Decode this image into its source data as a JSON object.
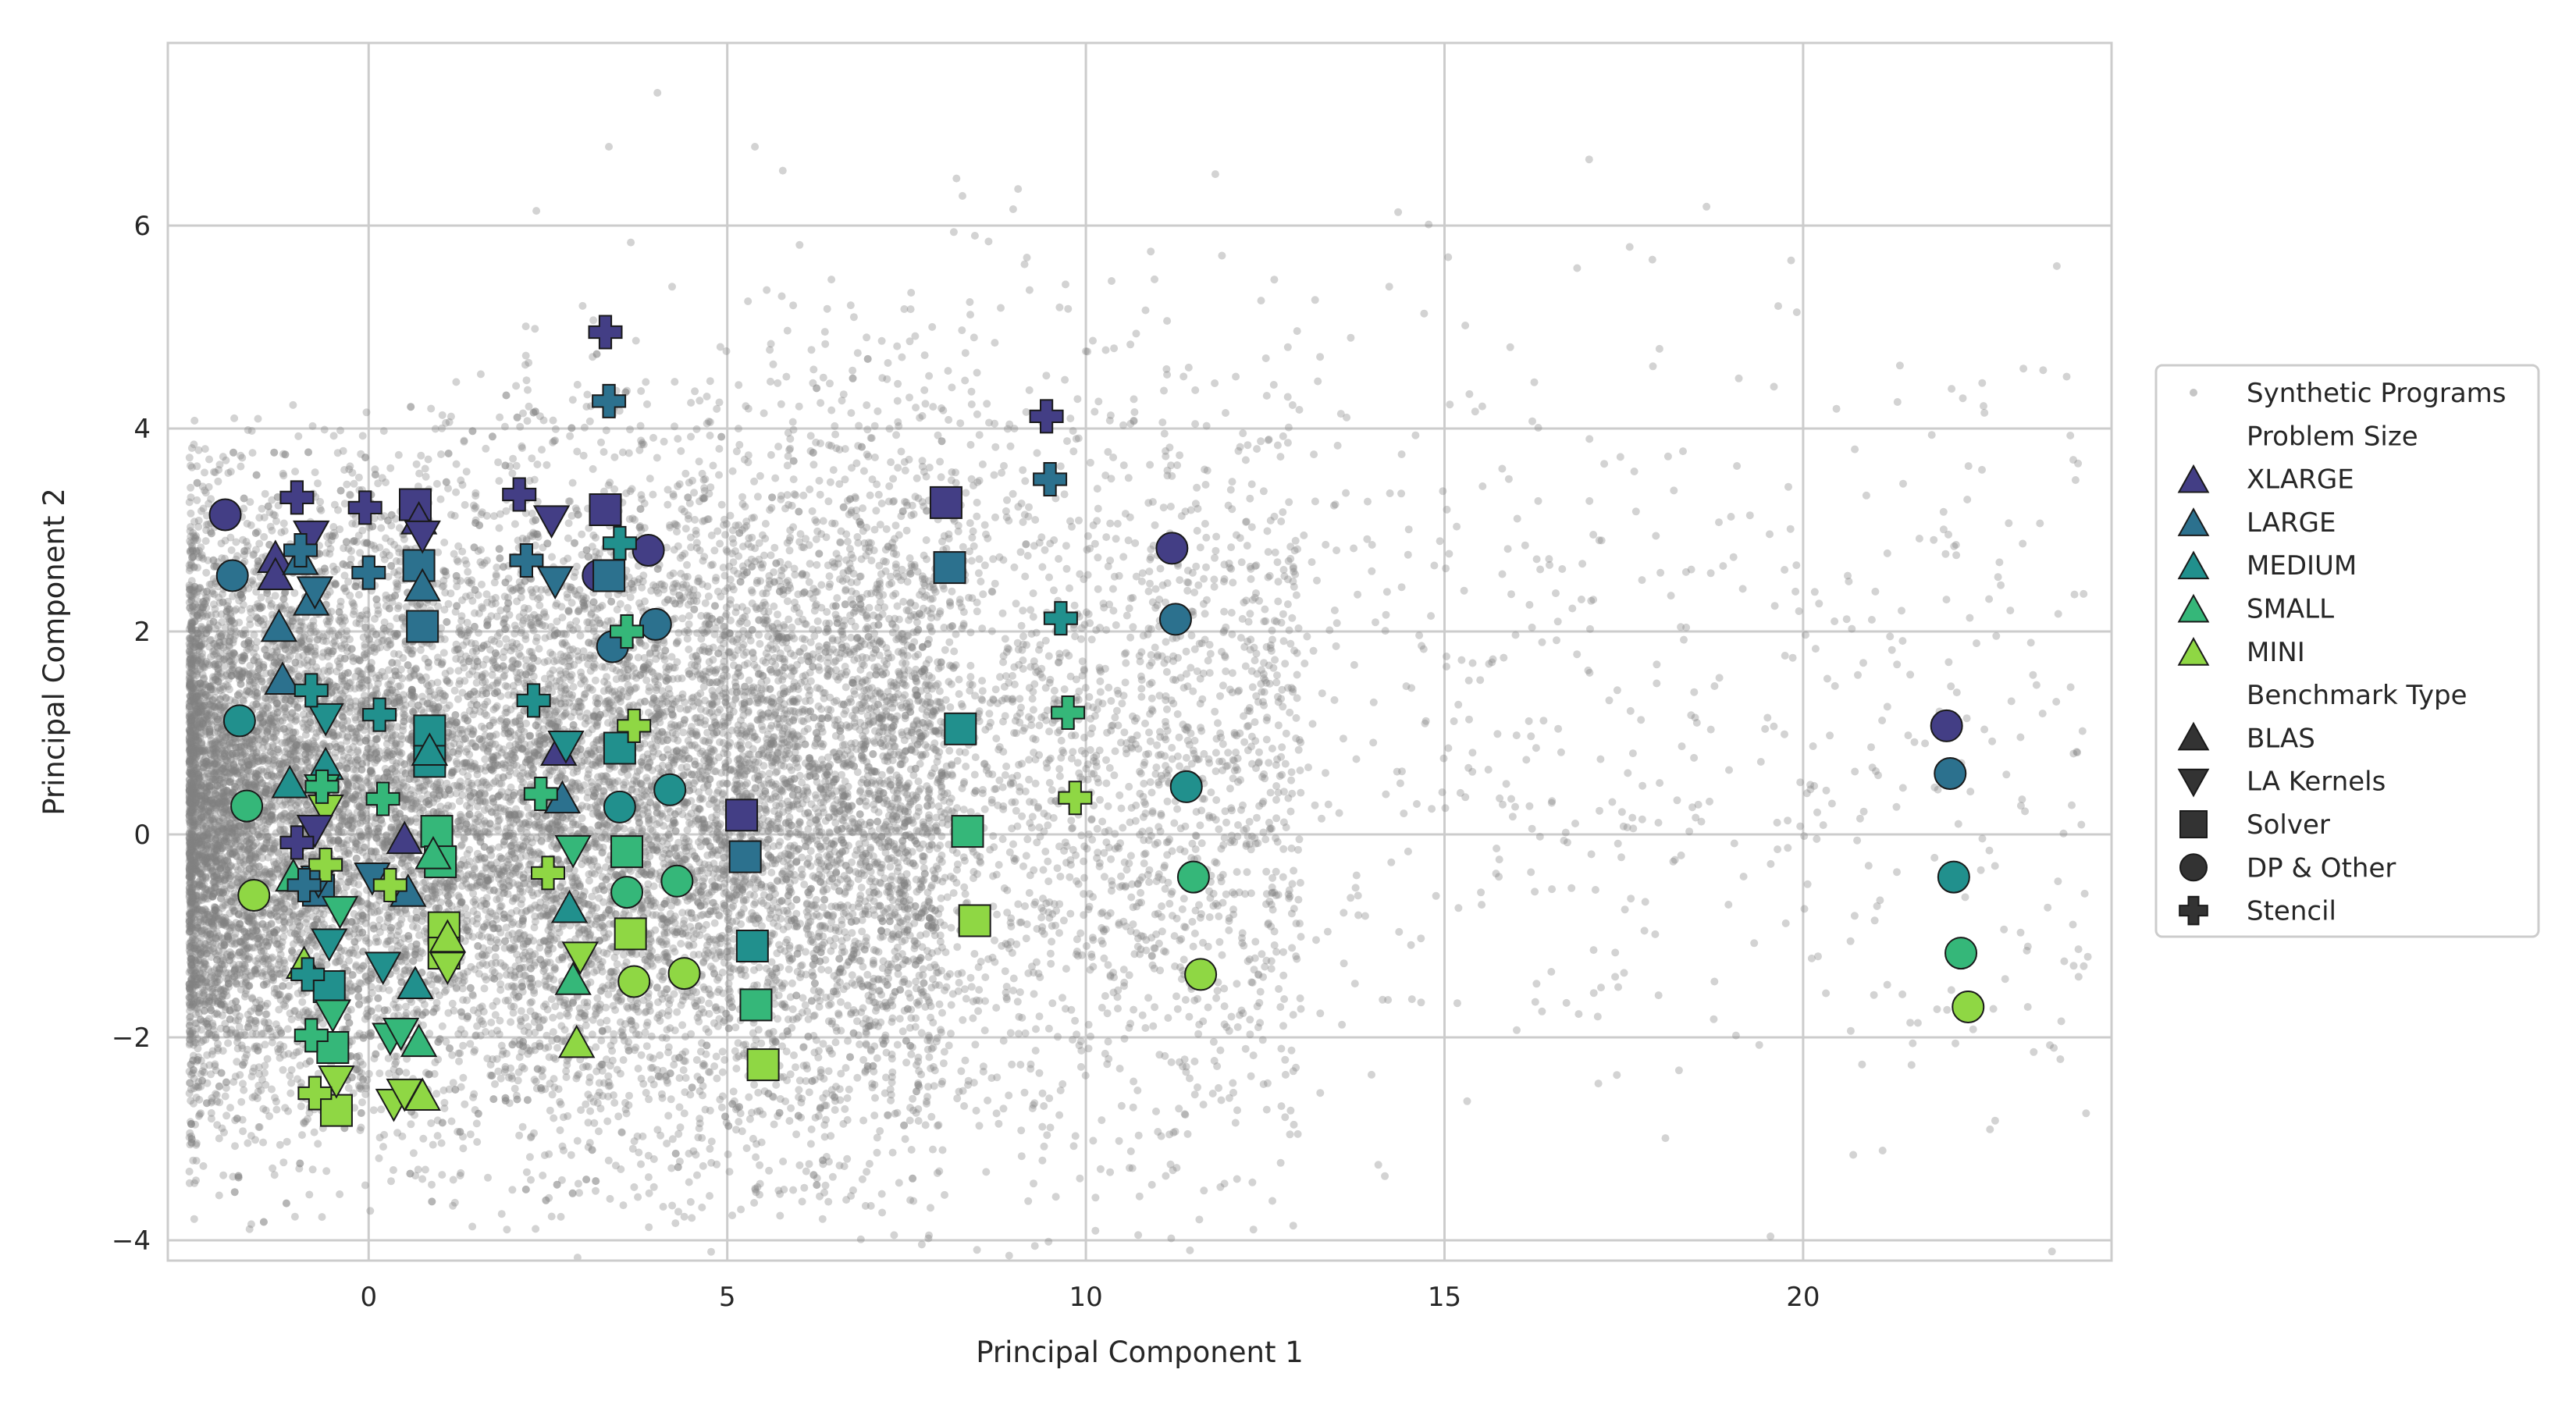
{
  "chart_data": {
    "type": "scatter",
    "title": "",
    "xlabel": "Principal Component 1",
    "ylabel": "Principal Component 2",
    "xlim": [
      -2.8,
      24.3
    ],
    "ylim": [
      -4.2,
      7.8
    ],
    "xticks": [
      0,
      5,
      10,
      15,
      20
    ],
    "yticks": [
      -4,
      -2,
      0,
      2,
      4,
      6
    ],
    "grid": true,
    "legend_position": "right",
    "background_series": {
      "name": "Synthetic Programs",
      "color": "#808080",
      "note_points": "dense cloud; main mass x in [-2.5, 12], y in [-4, 5]; sparse tail to x~24"
    },
    "legend": {
      "entries": [
        {
          "label": "Synthetic Programs",
          "kind": "dot"
        },
        {
          "label": "Problem Size",
          "kind": "heading"
        },
        {
          "label": "XLARGE",
          "kind": "size",
          "color": "#433e85"
        },
        {
          "label": "LARGE",
          "kind": "size",
          "color": "#2c718e"
        },
        {
          "label": "MEDIUM",
          "kind": "size",
          "color": "#21908d"
        },
        {
          "label": "SMALL",
          "kind": "size",
          "color": "#35b779"
        },
        {
          "label": "MINI",
          "kind": "size",
          "color": "#8fd744"
        },
        {
          "label": "Benchmark Type",
          "kind": "heading"
        },
        {
          "label": "BLAS",
          "kind": "type",
          "marker": "triangle-up"
        },
        {
          "label": "LA Kernels",
          "kind": "type",
          "marker": "triangle-down"
        },
        {
          "label": "Solver",
          "kind": "type",
          "marker": "square"
        },
        {
          "label": "DP & Other",
          "kind": "type",
          "marker": "circle"
        },
        {
          "label": "Stencil",
          "kind": "type",
          "marker": "plus"
        }
      ]
    },
    "size_colors": {
      "XLARGE": "#433e85",
      "LARGE": "#2c718e",
      "MEDIUM": "#21908d",
      "SMALL": "#35b779",
      "MINI": "#8fd744"
    },
    "points": [
      {
        "x": -2.0,
        "y": 3.15,
        "size": "XLARGE",
        "type": "DP & Other"
      },
      {
        "x": -1.9,
        "y": 2.55,
        "size": "LARGE",
        "type": "DP & Other"
      },
      {
        "x": -1.8,
        "y": 1.12,
        "size": "MEDIUM",
        "type": "DP & Other"
      },
      {
        "x": -1.7,
        "y": 0.28,
        "size": "SMALL",
        "type": "DP & Other"
      },
      {
        "x": -1.6,
        "y": -0.6,
        "size": "MINI",
        "type": "DP & Other"
      },
      {
        "x": 3.2,
        "y": 2.55,
        "size": "XLARGE",
        "type": "DP & Other"
      },
      {
        "x": 3.9,
        "y": 2.8,
        "size": "XLARGE",
        "type": "DP & Other"
      },
      {
        "x": 3.4,
        "y": 1.85,
        "size": "LARGE",
        "type": "DP & Other"
      },
      {
        "x": 4.0,
        "y": 2.07,
        "size": "LARGE",
        "type": "DP & Other"
      },
      {
        "x": 3.5,
        "y": 0.27,
        "size": "MEDIUM",
        "type": "DP & Other"
      },
      {
        "x": 4.2,
        "y": 0.44,
        "size": "MEDIUM",
        "type": "DP & Other"
      },
      {
        "x": 3.6,
        "y": -0.57,
        "size": "SMALL",
        "type": "DP & Other"
      },
      {
        "x": 4.3,
        "y": -0.46,
        "size": "SMALL",
        "type": "DP & Other"
      },
      {
        "x": 3.7,
        "y": -1.45,
        "size": "MINI",
        "type": "DP & Other"
      },
      {
        "x": 4.4,
        "y": -1.37,
        "size": "MINI",
        "type": "DP & Other"
      },
      {
        "x": 11.2,
        "y": 2.82,
        "size": "XLARGE",
        "type": "DP & Other"
      },
      {
        "x": 11.25,
        "y": 2.12,
        "size": "LARGE",
        "type": "DP & Other"
      },
      {
        "x": 11.4,
        "y": 0.47,
        "size": "MEDIUM",
        "type": "DP & Other"
      },
      {
        "x": 11.5,
        "y": -0.42,
        "size": "SMALL",
        "type": "DP & Other"
      },
      {
        "x": 11.6,
        "y": -1.38,
        "size": "MINI",
        "type": "DP & Other"
      },
      {
        "x": 22.0,
        "y": 1.07,
        "size": "XLARGE",
        "type": "DP & Other"
      },
      {
        "x": 22.05,
        "y": 0.6,
        "size": "LARGE",
        "type": "DP & Other"
      },
      {
        "x": 22.1,
        "y": -0.42,
        "size": "MEDIUM",
        "type": "DP & Other"
      },
      {
        "x": 22.2,
        "y": -1.17,
        "size": "SMALL",
        "type": "DP & Other"
      },
      {
        "x": 22.3,
        "y": -1.7,
        "size": "MINI",
        "type": "DP & Other"
      },
      {
        "x": 0.65,
        "y": 3.25,
        "size": "XLARGE",
        "type": "Solver"
      },
      {
        "x": 0.7,
        "y": 2.65,
        "size": "LARGE",
        "type": "Solver"
      },
      {
        "x": 0.75,
        "y": 2.05,
        "size": "LARGE",
        "type": "Solver"
      },
      {
        "x": 0.85,
        "y": 1.02,
        "size": "MEDIUM",
        "type": "Solver"
      },
      {
        "x": 0.85,
        "y": 0.72,
        "size": "MEDIUM",
        "type": "Solver"
      },
      {
        "x": 0.95,
        "y": 0.03,
        "size": "SMALL",
        "type": "Solver"
      },
      {
        "x": 1.0,
        "y": -0.27,
        "size": "SMALL",
        "type": "Solver"
      },
      {
        "x": 1.05,
        "y": -0.92,
        "size": "MINI",
        "type": "Solver"
      },
      {
        "x": 1.05,
        "y": -1.17,
        "size": "MINI",
        "type": "Solver"
      },
      {
        "x": -0.7,
        "y": -0.55,
        "size": "LARGE",
        "type": "Solver"
      },
      {
        "x": -0.55,
        "y": -1.5,
        "size": "MEDIUM",
        "type": "Solver"
      },
      {
        "x": -0.5,
        "y": -2.1,
        "size": "SMALL",
        "type": "Solver"
      },
      {
        "x": -0.45,
        "y": -2.72,
        "size": "MINI",
        "type": "Solver"
      },
      {
        "x": 3.3,
        "y": 3.2,
        "size": "XLARGE",
        "type": "Solver"
      },
      {
        "x": 3.35,
        "y": 2.55,
        "size": "LARGE",
        "type": "Solver"
      },
      {
        "x": 3.5,
        "y": 0.85,
        "size": "MEDIUM",
        "type": "Solver"
      },
      {
        "x": 3.6,
        "y": -0.17,
        "size": "SMALL",
        "type": "Solver"
      },
      {
        "x": 3.65,
        "y": -0.98,
        "size": "MINI",
        "type": "Solver"
      },
      {
        "x": 5.2,
        "y": 0.19,
        "size": "XLARGE",
        "type": "Solver"
      },
      {
        "x": 5.25,
        "y": -0.22,
        "size": "LARGE",
        "type": "Solver"
      },
      {
        "x": 5.35,
        "y": -1.1,
        "size": "MEDIUM",
        "type": "Solver"
      },
      {
        "x": 5.4,
        "y": -1.68,
        "size": "SMALL",
        "type": "Solver"
      },
      {
        "x": 5.5,
        "y": -2.27,
        "size": "MINI",
        "type": "Solver"
      },
      {
        "x": 8.05,
        "y": 3.27,
        "size": "XLARGE",
        "type": "Solver"
      },
      {
        "x": 8.1,
        "y": 2.63,
        "size": "LARGE",
        "type": "Solver"
      },
      {
        "x": 8.25,
        "y": 1.04,
        "size": "MEDIUM",
        "type": "Solver"
      },
      {
        "x": 8.35,
        "y": 0.03,
        "size": "SMALL",
        "type": "Solver"
      },
      {
        "x": 8.45,
        "y": -0.85,
        "size": "MINI",
        "type": "Solver"
      },
      {
        "x": -1.3,
        "y": 2.72,
        "size": "XLARGE",
        "type": "BLAS"
      },
      {
        "x": -1.3,
        "y": 2.55,
        "size": "XLARGE",
        "type": "BLAS"
      },
      {
        "x": -0.95,
        "y": 2.7,
        "size": "LARGE",
        "type": "BLAS"
      },
      {
        "x": -0.8,
        "y": 2.3,
        "size": "LARGE",
        "type": "BLAS"
      },
      {
        "x": -1.25,
        "y": 2.04,
        "size": "LARGE",
        "type": "BLAS"
      },
      {
        "x": -1.2,
        "y": 1.52,
        "size": "LARGE",
        "type": "BLAS"
      },
      {
        "x": -1.1,
        "y": 0.5,
        "size": "MEDIUM",
        "type": "BLAS"
      },
      {
        "x": -0.6,
        "y": 0.68,
        "size": "MEDIUM",
        "type": "BLAS"
      },
      {
        "x": -1.05,
        "y": -0.42,
        "size": "SMALL",
        "type": "BLAS"
      },
      {
        "x": -0.9,
        "y": -1.28,
        "size": "MINI",
        "type": "BLAS"
      },
      {
        "x": 0.7,
        "y": 3.1,
        "size": "XLARGE",
        "type": "BLAS"
      },
      {
        "x": 0.75,
        "y": 2.44,
        "size": "LARGE",
        "type": "BLAS"
      },
      {
        "x": 0.85,
        "y": 0.82,
        "size": "MEDIUM",
        "type": "BLAS"
      },
      {
        "x": 0.9,
        "y": -0.2,
        "size": "SMALL",
        "type": "BLAS"
      },
      {
        "x": 1.1,
        "y": -1.02,
        "size": "MINI",
        "type": "BLAS"
      },
      {
        "x": 0.5,
        "y": -0.05,
        "size": "XLARGE",
        "type": "BLAS"
      },
      {
        "x": 0.55,
        "y": -0.57,
        "size": "LARGE",
        "type": "BLAS"
      },
      {
        "x": 0.65,
        "y": -1.48,
        "size": "MEDIUM",
        "type": "BLAS"
      },
      {
        "x": 0.7,
        "y": -2.05,
        "size": "SMALL",
        "type": "BLAS"
      },
      {
        "x": 0.75,
        "y": -2.58,
        "size": "MINI",
        "type": "BLAS"
      },
      {
        "x": 2.65,
        "y": 0.82,
        "size": "XLARGE",
        "type": "BLAS"
      },
      {
        "x": 2.7,
        "y": 0.35,
        "size": "LARGE",
        "type": "BLAS"
      },
      {
        "x": 2.8,
        "y": -0.73,
        "size": "MEDIUM",
        "type": "BLAS"
      },
      {
        "x": 2.85,
        "y": -1.44,
        "size": "SMALL",
        "type": "BLAS"
      },
      {
        "x": 2.9,
        "y": -2.06,
        "size": "MINI",
        "type": "BLAS"
      },
      {
        "x": -0.8,
        "y": 2.95,
        "size": "XLARGE",
        "type": "LA Kernels"
      },
      {
        "x": -0.75,
        "y": 2.4,
        "size": "LARGE",
        "type": "LA Kernels"
      },
      {
        "x": -0.6,
        "y": 1.15,
        "size": "MEDIUM",
        "type": "LA Kernels"
      },
      {
        "x": -0.65,
        "y": 0.45,
        "size": "SMALL",
        "type": "LA Kernels"
      },
      {
        "x": -0.6,
        "y": 0.25,
        "size": "MINI",
        "type": "LA Kernels"
      },
      {
        "x": -0.75,
        "y": 0.05,
        "size": "XLARGE",
        "type": "LA Kernels"
      },
      {
        "x": -0.7,
        "y": -0.45,
        "size": "LARGE",
        "type": "LA Kernels"
      },
      {
        "x": -0.55,
        "y": -1.07,
        "size": "MEDIUM",
        "type": "LA Kernels"
      },
      {
        "x": -0.5,
        "y": -1.77,
        "size": "SMALL",
        "type": "LA Kernels"
      },
      {
        "x": -0.45,
        "y": -2.42,
        "size": "MINI",
        "type": "LA Kernels"
      },
      {
        "x": -0.4,
        "y": -0.75,
        "size": "SMALL",
        "type": "LA Kernels"
      },
      {
        "x": 0.05,
        "y": -0.42,
        "size": "LARGE",
        "type": "LA Kernels"
      },
      {
        "x": 0.2,
        "y": -1.3,
        "size": "MEDIUM",
        "type": "LA Kernels"
      },
      {
        "x": 0.3,
        "y": -2.0,
        "size": "SMALL",
        "type": "LA Kernels"
      },
      {
        "x": 0.35,
        "y": -2.65,
        "size": "MINI",
        "type": "LA Kernels"
      },
      {
        "x": 0.45,
        "y": -1.95,
        "size": "SMALL",
        "type": "LA Kernels"
      },
      {
        "x": 0.5,
        "y": -2.55,
        "size": "MINI",
        "type": "LA Kernels"
      },
      {
        "x": 1.1,
        "y": -1.3,
        "size": "MINI",
        "type": "LA Kernels"
      },
      {
        "x": 0.75,
        "y": 2.95,
        "size": "XLARGE",
        "type": "LA Kernels"
      },
      {
        "x": 2.55,
        "y": 3.1,
        "size": "XLARGE",
        "type": "LA Kernels"
      },
      {
        "x": 2.6,
        "y": 2.5,
        "size": "LARGE",
        "type": "LA Kernels"
      },
      {
        "x": 2.75,
        "y": 0.88,
        "size": "MEDIUM",
        "type": "LA Kernels"
      },
      {
        "x": 2.85,
        "y": -0.15,
        "size": "SMALL",
        "type": "LA Kernels"
      },
      {
        "x": 2.95,
        "y": -1.2,
        "size": "MINI",
        "type": "LA Kernels"
      },
      {
        "x": -1.0,
        "y": 3.32,
        "size": "XLARGE",
        "type": "Stencil"
      },
      {
        "x": -0.95,
        "y": 2.8,
        "size": "LARGE",
        "type": "Stencil"
      },
      {
        "x": -0.8,
        "y": 1.42,
        "size": "MEDIUM",
        "type": "Stencil"
      },
      {
        "x": -0.65,
        "y": 0.47,
        "size": "SMALL",
        "type": "Stencil"
      },
      {
        "x": -0.6,
        "y": -0.3,
        "size": "MINI",
        "type": "Stencil"
      },
      {
        "x": -1.0,
        "y": -0.08,
        "size": "XLARGE",
        "type": "Stencil"
      },
      {
        "x": -0.9,
        "y": -0.5,
        "size": "LARGE",
        "type": "Stencil"
      },
      {
        "x": -0.85,
        "y": -1.38,
        "size": "MEDIUM",
        "type": "Stencil"
      },
      {
        "x": -0.8,
        "y": -1.98,
        "size": "SMALL",
        "type": "Stencil"
      },
      {
        "x": -0.75,
        "y": -2.55,
        "size": "MINI",
        "type": "Stencil"
      },
      {
        "x": -0.05,
        "y": 3.22,
        "size": "XLARGE",
        "type": "Stencil"
      },
      {
        "x": 0.0,
        "y": 2.58,
        "size": "LARGE",
        "type": "Stencil"
      },
      {
        "x": 0.15,
        "y": 1.18,
        "size": "MEDIUM",
        "type": "Stencil"
      },
      {
        "x": 0.2,
        "y": 0.35,
        "size": "SMALL",
        "type": "Stencil"
      },
      {
        "x": 0.3,
        "y": -0.5,
        "size": "MINI",
        "type": "Stencil"
      },
      {
        "x": 2.1,
        "y": 3.35,
        "size": "XLARGE",
        "type": "Stencil"
      },
      {
        "x": 2.2,
        "y": 2.7,
        "size": "LARGE",
        "type": "Stencil"
      },
      {
        "x": 2.3,
        "y": 1.32,
        "size": "MEDIUM",
        "type": "Stencil"
      },
      {
        "x": 2.4,
        "y": 0.4,
        "size": "SMALL",
        "type": "Stencil"
      },
      {
        "x": 2.5,
        "y": -0.38,
        "size": "MINI",
        "type": "Stencil"
      },
      {
        "x": 3.3,
        "y": 4.95,
        "size": "XLARGE",
        "type": "Stencil"
      },
      {
        "x": 3.35,
        "y": 4.27,
        "size": "LARGE",
        "type": "Stencil"
      },
      {
        "x": 3.5,
        "y": 2.87,
        "size": "MEDIUM",
        "type": "Stencil"
      },
      {
        "x": 3.6,
        "y": 2.0,
        "size": "SMALL",
        "type": "Stencil"
      },
      {
        "x": 3.7,
        "y": 1.07,
        "size": "MINI",
        "type": "Stencil"
      },
      {
        "x": 9.45,
        "y": 4.12,
        "size": "XLARGE",
        "type": "Stencil"
      },
      {
        "x": 9.5,
        "y": 3.5,
        "size": "LARGE",
        "type": "Stencil"
      },
      {
        "x": 9.65,
        "y": 2.13,
        "size": "MEDIUM",
        "type": "Stencil"
      },
      {
        "x": 9.75,
        "y": 1.2,
        "size": "SMALL",
        "type": "Stencil"
      },
      {
        "x": 9.85,
        "y": 0.36,
        "size": "MINI",
        "type": "Stencil"
      }
    ]
  }
}
